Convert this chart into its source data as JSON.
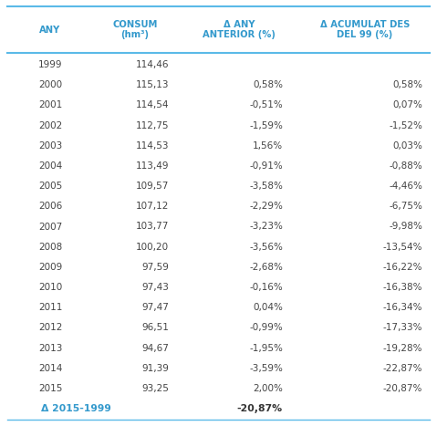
{
  "header": [
    "ANY",
    "CONSUM\n(hm³)",
    "Δ ANY\nANTERIOR (%)",
    "Δ ACUMULAT DES\nDEL 99 (%)"
  ],
  "rows": [
    [
      "1999",
      "114,46",
      "",
      ""
    ],
    [
      "2000",
      "115,13",
      "0,58%",
      "0,58%"
    ],
    [
      "2001",
      "114,54",
      "-0,51%",
      "0,07%"
    ],
    [
      "2002",
      "112,75",
      "-1,59%",
      "-1,52%"
    ],
    [
      "2003",
      "114,53",
      "1,56%",
      "0,03%"
    ],
    [
      "2004",
      "113,49",
      "-0,91%",
      "-0,88%"
    ],
    [
      "2005",
      "109,57",
      "-3,58%",
      "-4,46%"
    ],
    [
      "2006",
      "107,12",
      "-2,29%",
      "-6,75%"
    ],
    [
      "2007",
      "103,77",
      "-3,23%",
      "-9,98%"
    ],
    [
      "2008",
      "100,20",
      "-3,56%",
      "-13,54%"
    ],
    [
      "2009",
      "97,59",
      "-2,68%",
      "-16,22%"
    ],
    [
      "2010",
      "97,43",
      "-0,16%",
      "-16,38%"
    ],
    [
      "2011",
      "97,47",
      "0,04%",
      "-16,34%"
    ],
    [
      "2012",
      "96,51",
      "-0,99%",
      "-17,33%"
    ],
    [
      "2013",
      "94,67",
      "-1,95%",
      "-19,28%"
    ],
    [
      "2014",
      "91,39",
      "-3,59%",
      "-22,87%"
    ],
    [
      "2015",
      "93,25",
      "2,00%",
      "-20,87%"
    ]
  ],
  "footer_label": "Δ 2015-1999",
  "footer_col3": "-20,87%",
  "header_color": "#3399cc",
  "footer_label_color": "#3399cc",
  "footer_value_color": "#333333",
  "bg_color": "#ffffff",
  "line_color": "#5bbae8",
  "text_color": "#444444",
  "font_size_header": 7.2,
  "font_size_data": 7.5,
  "font_size_footer": 7.8
}
